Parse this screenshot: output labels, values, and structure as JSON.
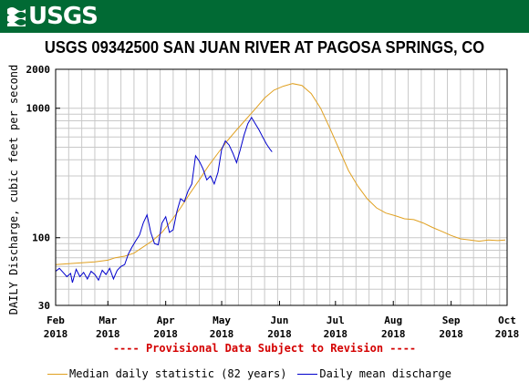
{
  "header": {
    "logo_text": "USGS",
    "colors": {
      "bar": "#016a34",
      "text": "#ffffff"
    }
  },
  "chart_data": {
    "type": "line",
    "title": "USGS 09342500 SAN JUAN RIVER AT PAGOSA SPRINGS, CO",
    "ylabel": "DAILY Discharge, cubic feet per second",
    "xlabel": "",
    "yscale": "log",
    "ylim": [
      30,
      2000
    ],
    "yticks": [
      30,
      100,
      1000,
      2000
    ],
    "xlim": [
      "2018-02-01",
      "2018-10-01"
    ],
    "xticks": [
      {
        "date": "2018-02-01",
        "label": [
          "Feb",
          "2018"
        ]
      },
      {
        "date": "2018-03-01",
        "label": [
          "Mar",
          "2018"
        ]
      },
      {
        "date": "2018-04-01",
        "label": [
          "Apr",
          "2018"
        ]
      },
      {
        "date": "2018-05-01",
        "label": [
          "May",
          "2018"
        ]
      },
      {
        "date": "2018-06-01",
        "label": [
          "Jun",
          "2018"
        ]
      },
      {
        "date": "2018-07-01",
        "label": [
          "Jul",
          "2018"
        ]
      },
      {
        "date": "2018-08-01",
        "label": [
          "Aug",
          "2018"
        ]
      },
      {
        "date": "2018-09-01",
        "label": [
          "Sep",
          "2018"
        ]
      },
      {
        "date": "2018-10-01",
        "label": [
          "Oct",
          "2018"
        ]
      }
    ],
    "grid": true,
    "legend_position": "bottom",
    "series": [
      {
        "name": "Median daily statistic (82 years)",
        "color": "#e0a020",
        "points": [
          [
            "2018-02-01",
            62
          ],
          [
            "2018-02-08",
            63
          ],
          [
            "2018-02-15",
            64
          ],
          [
            "2018-02-22",
            65
          ],
          [
            "2018-03-01",
            67
          ],
          [
            "2018-03-05",
            70
          ],
          [
            "2018-03-10",
            72
          ],
          [
            "2018-03-15",
            76
          ],
          [
            "2018-03-20",
            85
          ],
          [
            "2018-03-25",
            95
          ],
          [
            "2018-03-30",
            110
          ],
          [
            "2018-04-04",
            135
          ],
          [
            "2018-04-09",
            170
          ],
          [
            "2018-04-14",
            220
          ],
          [
            "2018-04-19",
            280
          ],
          [
            "2018-04-24",
            360
          ],
          [
            "2018-04-29",
            450
          ],
          [
            "2018-05-04",
            560
          ],
          [
            "2018-05-09",
            680
          ],
          [
            "2018-05-14",
            820
          ],
          [
            "2018-05-19",
            990
          ],
          [
            "2018-05-24",
            1200
          ],
          [
            "2018-05-29",
            1380
          ],
          [
            "2018-06-03",
            1480
          ],
          [
            "2018-06-08",
            1550
          ],
          [
            "2018-06-13",
            1500
          ],
          [
            "2018-06-18",
            1300
          ],
          [
            "2018-06-23",
            1000
          ],
          [
            "2018-06-28",
            700
          ],
          [
            "2018-07-03",
            480
          ],
          [
            "2018-07-08",
            330
          ],
          [
            "2018-07-13",
            250
          ],
          [
            "2018-07-18",
            200
          ],
          [
            "2018-07-23",
            170
          ],
          [
            "2018-07-28",
            155
          ],
          [
            "2018-08-02",
            148
          ],
          [
            "2018-08-07",
            140
          ],
          [
            "2018-08-12",
            138
          ],
          [
            "2018-08-17",
            130
          ],
          [
            "2018-08-22",
            120
          ],
          [
            "2018-08-27",
            112
          ],
          [
            "2018-09-01",
            104
          ],
          [
            "2018-09-06",
            98
          ],
          [
            "2018-09-11",
            96
          ],
          [
            "2018-09-16",
            94
          ],
          [
            "2018-09-21",
            96
          ],
          [
            "2018-09-26",
            95
          ],
          [
            "2018-09-30",
            96
          ]
        ]
      },
      {
        "name": "Daily mean discharge",
        "color": "#0000cc",
        "points": [
          [
            "2018-02-01",
            55
          ],
          [
            "2018-02-03",
            58
          ],
          [
            "2018-02-05",
            54
          ],
          [
            "2018-02-07",
            50
          ],
          [
            "2018-02-09",
            53
          ],
          [
            "2018-02-10",
            45
          ],
          [
            "2018-02-12",
            57
          ],
          [
            "2018-02-14",
            50
          ],
          [
            "2018-02-16",
            54
          ],
          [
            "2018-02-18",
            48
          ],
          [
            "2018-02-20",
            55
          ],
          [
            "2018-02-22",
            52
          ],
          [
            "2018-02-24",
            47
          ],
          [
            "2018-02-26",
            56
          ],
          [
            "2018-02-28",
            52
          ],
          [
            "2018-03-02",
            58
          ],
          [
            "2018-03-04",
            48
          ],
          [
            "2018-03-06",
            56
          ],
          [
            "2018-03-08",
            60
          ],
          [
            "2018-03-10",
            62
          ],
          [
            "2018-03-12",
            75
          ],
          [
            "2018-03-14",
            85
          ],
          [
            "2018-03-16",
            95
          ],
          [
            "2018-03-18",
            105
          ],
          [
            "2018-03-20",
            130
          ],
          [
            "2018-03-22",
            150
          ],
          [
            "2018-03-24",
            110
          ],
          [
            "2018-03-26",
            90
          ],
          [
            "2018-03-28",
            88
          ],
          [
            "2018-03-30",
            130
          ],
          [
            "2018-04-01",
            145
          ],
          [
            "2018-04-03",
            110
          ],
          [
            "2018-04-05",
            115
          ],
          [
            "2018-04-07",
            160
          ],
          [
            "2018-04-09",
            200
          ],
          [
            "2018-04-11",
            190
          ],
          [
            "2018-04-13",
            230
          ],
          [
            "2018-04-15",
            260
          ],
          [
            "2018-04-17",
            430
          ],
          [
            "2018-04-19",
            390
          ],
          [
            "2018-04-21",
            340
          ],
          [
            "2018-04-23",
            280
          ],
          [
            "2018-04-25",
            300
          ],
          [
            "2018-04-27",
            260
          ],
          [
            "2018-04-29",
            320
          ],
          [
            "2018-05-01",
            480
          ],
          [
            "2018-05-03",
            560
          ],
          [
            "2018-05-05",
            520
          ],
          [
            "2018-05-07",
            450
          ],
          [
            "2018-05-09",
            380
          ],
          [
            "2018-05-11",
            480
          ],
          [
            "2018-05-13",
            620
          ],
          [
            "2018-05-15",
            760
          ],
          [
            "2018-05-17",
            850
          ],
          [
            "2018-05-19",
            760
          ],
          [
            "2018-05-21",
            680
          ],
          [
            "2018-05-23",
            600
          ],
          [
            "2018-05-25",
            530
          ],
          [
            "2018-05-27",
            480
          ],
          [
            "2018-05-28",
            460
          ]
        ]
      }
    ]
  },
  "footer": {
    "provisional_note": "---- Provisional Data Subject to Revision ----",
    "provisional_color": "#d40000"
  }
}
